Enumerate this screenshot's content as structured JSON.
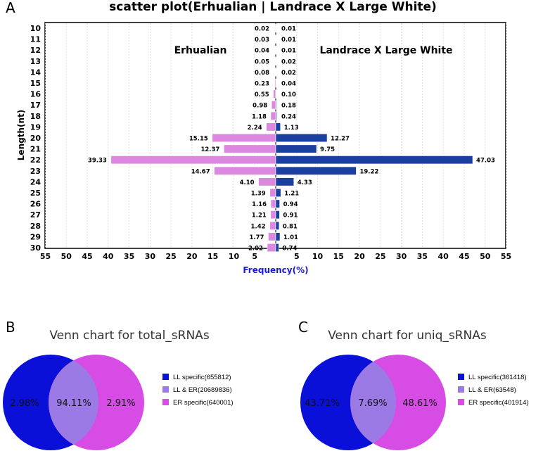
{
  "chart_data": [
    {
      "type": "bar",
      "orientation": "horizontal-back-to-back",
      "panel": "A",
      "title": "scatter plot(Erhualian | Landrace X Large White)",
      "xlabel": "Frequency(%)",
      "ylabel": "Length(nt)",
      "xlim": [
        -55,
        55
      ],
      "xticks": [
        "55",
        "50",
        "45",
        "40",
        "35",
        "30",
        "25",
        "20",
        "15",
        "10",
        "5",
        "",
        "5",
        "10",
        "15",
        "20",
        "25",
        "30",
        "35",
        "40",
        "45",
        "50",
        "55"
      ],
      "categories": [
        "10",
        "11",
        "12",
        "13",
        "14",
        "15",
        "16",
        "17",
        "18",
        "19",
        "20",
        "21",
        "22",
        "23",
        "24",
        "25",
        "26",
        "27",
        "28",
        "29",
        "30"
      ],
      "series": [
        {
          "name": "Erhualian",
          "side": "left",
          "color": "#dd88e0",
          "values": [
            0.02,
            0.03,
            0.04,
            0.05,
            0.08,
            0.23,
            0.55,
            0.98,
            1.18,
            2.24,
            15.15,
            12.37,
            39.33,
            14.67,
            4.1,
            1.39,
            1.16,
            1.21,
            1.42,
            1.77,
            2.02
          ],
          "labels": [
            "0.02",
            "0.03",
            "0.04",
            "0.05",
            "0.08",
            "0.23",
            "0.55",
            "0.98",
            "1.18",
            "2.24",
            "15.15",
            "12.37",
            "39.33",
            "14.67",
            "4.10",
            "1.39",
            "1.16",
            "1.21",
            "1.42",
            "1.77",
            "2.02"
          ]
        },
        {
          "name": "Landrace X Large White",
          "side": "right",
          "color": "#1a3fa0",
          "values": [
            0.01,
            0.01,
            0.01,
            0.02,
            0.02,
            0.04,
            0.1,
            0.18,
            0.24,
            1.13,
            12.27,
            9.75,
            47.03,
            19.22,
            4.33,
            1.21,
            0.94,
            0.91,
            0.81,
            1.01,
            0.74
          ],
          "labels": [
            "0.01",
            "0.01",
            "0.01",
            "0.02",
            "0.02",
            "0.04",
            "0.10",
            "0.18",
            "0.24",
            "1.13",
            "12.27",
            "9.75",
            "47.03",
            "19.22",
            "4.33",
            "1.21",
            "0.94",
            "0.91",
            "0.81",
            "1.01",
            "0.74"
          ]
        }
      ]
    },
    {
      "type": "venn",
      "panel": "B",
      "title": "Venn chart for total_sRNAs",
      "sets": [
        {
          "name": "LL specific(655812)",
          "percent_label": "2.98%",
          "color": "#0b10d8"
        },
        {
          "name": "LL & ER(20689836)",
          "percent_label": "94.11%",
          "color": "#9b7ae6"
        },
        {
          "name": "ER specific(640001)",
          "percent_label": "2.91%",
          "color": "#d64ce4"
        }
      ]
    },
    {
      "type": "venn",
      "panel": "C",
      "title": "Venn chart for uniq_sRNAs",
      "sets": [
        {
          "name": "LL specific(361418)",
          "percent_label": "43.71%",
          "color": "#0b10d8"
        },
        {
          "name": "LL & ER(63548)",
          "percent_label": "7.69%",
          "color": "#9b7ae6"
        },
        {
          "name": "ER specific(401914)",
          "percent_label": "48.61%",
          "color": "#d64ce4"
        }
      ]
    }
  ]
}
